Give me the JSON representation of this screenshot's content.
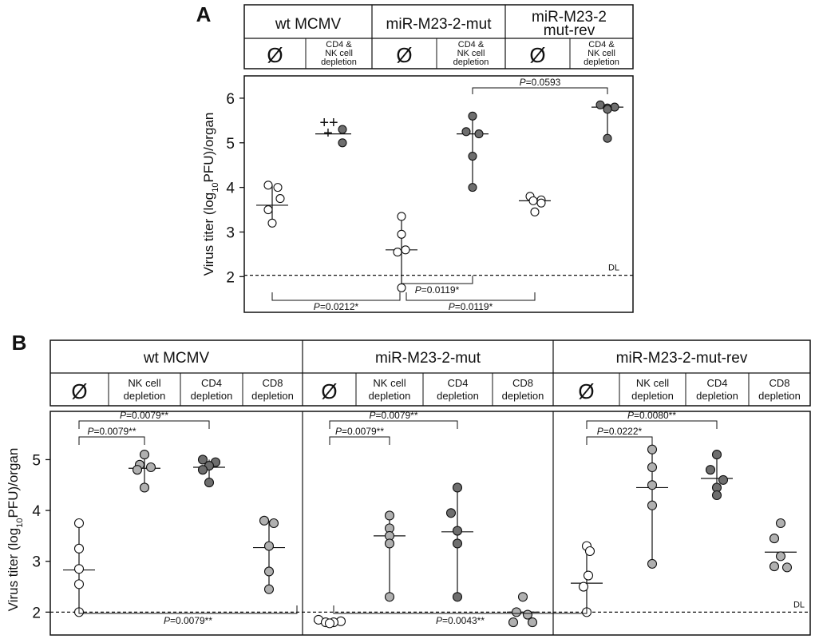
{
  "panel_a": {
    "label": "A",
    "groups": [
      {
        "name": "wt MCMV",
        "name_lines": [
          "wt MCMV"
        ],
        "conditions": [
          {
            "label": "Ø",
            "lines": [
              "Ø"
            ]
          },
          {
            "label": "CD4 & NK cell depletion",
            "lines": [
              "CD4 &",
              "NK cell",
              "depletion"
            ]
          }
        ]
      },
      {
        "name": "miR-M23-2-mut",
        "name_lines": [
          "miR-M23-2-mut"
        ],
        "conditions": [
          {
            "label": "Ø",
            "lines": [
              "Ø"
            ]
          },
          {
            "label": "CD4 & NK cell depletion",
            "lines": [
              "CD4 &",
              "NK cell",
              "depletion"
            ]
          }
        ]
      },
      {
        "name": "miR-M23-2 mut-rev",
        "name_lines": [
          "miR-M23-2",
          "mut-rev"
        ],
        "conditions": [
          {
            "label": "Ø",
            "lines": [
              "Ø"
            ]
          },
          {
            "label": "CD4 & NK cell depletion",
            "lines": [
              "CD4 &",
              "NK cell",
              "depletion"
            ]
          }
        ]
      }
    ],
    "ylabel": {
      "pre": "Virus titer (log",
      "sub": "10",
      "post": "PFU)/organ"
    },
    "yticks": [
      "2",
      "3",
      "4",
      "5",
      "6"
    ],
    "detection_limit": {
      "label": "DL",
      "value": 2.03
    },
    "deaths_marker": "++\n+"
  },
  "panel_b": {
    "label": "B",
    "groups": [
      {
        "name": "wt MCMV",
        "conditions": [
          {
            "label": "Ø",
            "lines": [
              "Ø"
            ]
          },
          {
            "label": "NK cell depletion",
            "lines": [
              "NK cell",
              "depletion"
            ]
          },
          {
            "label": "CD4 depletion",
            "lines": [
              "CD4",
              "depletion"
            ]
          },
          {
            "label": "CD8 depletion",
            "lines": [
              "CD8",
              "depletion"
            ]
          }
        ]
      },
      {
        "name": "miR-M23-2-mut",
        "conditions": [
          {
            "label": "Ø",
            "lines": [
              "Ø"
            ]
          },
          {
            "label": "NK cell depletion",
            "lines": [
              "NK cell",
              "depletion"
            ]
          },
          {
            "label": "CD4 depletion",
            "lines": [
              "CD4",
              "depletion"
            ]
          },
          {
            "label": "CD8 depletion",
            "lines": [
              "CD8",
              "depletion"
            ]
          }
        ]
      },
      {
        "name": "miR-M23-2-mut-rev",
        "conditions": [
          {
            "label": "Ø",
            "lines": [
              "Ø"
            ]
          },
          {
            "label": "NK cell depletion",
            "lines": [
              "NK cell",
              "depletion"
            ]
          },
          {
            "label": "CD4 depletion",
            "lines": [
              "CD4",
              "depletion"
            ]
          },
          {
            "label": "CD8 depletion",
            "lines": [
              "CD8",
              "depletion"
            ]
          }
        ]
      }
    ],
    "ylabel": {
      "pre": "Virus titer (log",
      "sub": "10",
      "post": "PFU)/organ"
    },
    "yticks": [
      "2",
      "3",
      "4",
      "5"
    ],
    "detection_limit": {
      "label": "DL",
      "value": 2.0
    }
  },
  "chart_data": [
    {
      "panel": "A",
      "type": "scatter",
      "ylim": [
        1.2,
        6.5
      ],
      "yticks": [
        2,
        3,
        4,
        5,
        6
      ],
      "series": [
        {
          "group": "wt MCMV",
          "condition": "Ø",
          "fill": "#ffffff",
          "values": [
            4.05,
            4.0,
            3.75,
            3.5,
            3.2
          ],
          "median": 3.6,
          "range": [
            3.2,
            4.05
          ]
        },
        {
          "group": "wt MCMV",
          "condition": "CD4 & NK cell depletion",
          "fill": "#6e6e6e",
          "values": [
            5.3,
            5.0
          ],
          "median": 5.2,
          "range": null
        },
        {
          "group": "miR-M23-2-mut",
          "condition": "Ø",
          "fill": "#ffffff",
          "values": [
            3.35,
            2.95,
            2.6,
            2.55,
            1.75
          ],
          "median": 2.6,
          "range": [
            1.75,
            3.35
          ]
        },
        {
          "group": "miR-M23-2-mut",
          "condition": "CD4 & NK cell depletion",
          "fill": "#6e6e6e",
          "values": [
            5.6,
            5.2,
            5.25,
            4.7,
            4.0
          ],
          "median": 5.2,
          "range": [
            4.0,
            5.6
          ]
        },
        {
          "group": "miR-M23-2 mut-rev",
          "condition": "Ø",
          "fill": "#ffffff",
          "values": [
            3.8,
            3.72,
            3.7,
            3.65,
            3.45
          ],
          "median": 3.7,
          "range": null
        },
        {
          "group": "miR-M23-2 mut-rev",
          "condition": "CD4 & NK cell depletion",
          "fill": "#6e6e6e",
          "values": [
            5.85,
            5.8,
            5.78,
            5.75,
            5.1
          ],
          "median": 5.8,
          "range": [
            5.1,
            5.85
          ]
        }
      ],
      "annotations": [
        {
          "text": "P=0.0593",
          "from": 3,
          "to": 5,
          "position": "top"
        },
        {
          "text": "P=0.0119*",
          "from": 2,
          "to": 3,
          "position": "bottom"
        },
        {
          "text": "P=0.0212*",
          "from": 0,
          "to": 2,
          "position": "bottom"
        },
        {
          "text": "P=0.0119*",
          "from": 2,
          "to": 4,
          "position": "bottom"
        }
      ]
    },
    {
      "panel": "B",
      "type": "scatter",
      "ylim": [
        1.55,
        5.95
      ],
      "yticks": [
        2,
        3,
        4,
        5
      ],
      "series": [
        {
          "group": "wt MCMV",
          "condition": "Ø",
          "fill": "#ffffff",
          "values": [
            3.75,
            3.25,
            2.85,
            2.55,
            2.0
          ],
          "median": 2.83,
          "range": [
            2.0,
            3.75
          ]
        },
        {
          "group": "wt MCMV",
          "condition": "NK cell depletion",
          "fill": "#b0b0b0",
          "values": [
            5.1,
            4.9,
            4.85,
            4.8,
            4.45
          ],
          "median": 4.83,
          "range": [
            4.45,
            5.1
          ]
        },
        {
          "group": "wt MCMV",
          "condition": "CD4 depletion",
          "fill": "#6e6e6e",
          "values": [
            5.0,
            4.95,
            4.88,
            4.8,
            4.55
          ],
          "median": 4.85,
          "range": [
            4.55,
            5.0
          ]
        },
        {
          "group": "wt MCMV",
          "condition": "CD8 depletion",
          "fill": "#b0b0b0",
          "values": [
            3.8,
            3.75,
            3.3,
            2.8,
            2.45
          ],
          "median": 3.27,
          "range": [
            2.45,
            3.8
          ]
        },
        {
          "group": "miR-M23-2-mut",
          "condition": "Ø",
          "fill": "#ffffff",
          "values": [
            1.85,
            1.82,
            1.8,
            1.8,
            1.78
          ],
          "median": 1.82,
          "range": null
        },
        {
          "group": "miR-M23-2-mut",
          "condition": "NK cell depletion",
          "fill": "#b0b0b0",
          "values": [
            3.9,
            3.65,
            3.5,
            3.35,
            2.3
          ],
          "median": 3.5,
          "range": [
            2.3,
            3.9
          ]
        },
        {
          "group": "miR-M23-2-mut",
          "condition": "CD4 depletion",
          "fill": "#6e6e6e",
          "values": [
            4.45,
            3.95,
            3.6,
            3.35,
            2.3
          ],
          "median": 3.58,
          "range": [
            2.3,
            4.45
          ]
        },
        {
          "group": "miR-M23-2-mut",
          "condition": "CD8 depletion",
          "fill": "#b0b0b0",
          "values": [
            2.3,
            2.0,
            1.95,
            1.8,
            1.8
          ],
          "median": 2.0,
          "range": null
        },
        {
          "group": "miR-M23-2-mut-rev",
          "condition": "Ø",
          "fill": "#ffffff",
          "values": [
            3.3,
            3.2,
            2.72,
            2.5,
            2.0
          ],
          "median": 2.57,
          "range": [
            2.0,
            3.3
          ]
        },
        {
          "group": "miR-M23-2-mut-rev",
          "condition": "NK cell depletion",
          "fill": "#b0b0b0",
          "values": [
            5.2,
            4.85,
            4.5,
            4.1,
            2.95
          ],
          "median": 4.45,
          "range": [
            2.95,
            5.2
          ]
        },
        {
          "group": "miR-M23-2-mut-rev",
          "condition": "CD4 depletion",
          "fill": "#6e6e6e",
          "values": [
            5.1,
            4.8,
            4.6,
            4.45,
            4.3
          ],
          "median": 4.63,
          "range": [
            4.3,
            5.1
          ]
        },
        {
          "group": "miR-M23-2-mut-rev",
          "condition": "CD8 depletion",
          "fill": "#b0b0b0",
          "values": [
            3.75,
            3.45,
            3.1,
            2.9,
            2.88
          ],
          "median": 3.18,
          "range": null
        }
      ],
      "annotations": [
        {
          "text": "P=0.0079**",
          "from": 0,
          "to": 2,
          "position": "top",
          "tier": 2
        },
        {
          "text": "P=0.0079**",
          "from": 0,
          "to": 1,
          "position": "top",
          "tier": 1
        },
        {
          "text": "P=0.0079**",
          "from": 4,
          "to": 6,
          "position": "top",
          "tier": 2
        },
        {
          "text": "P=0.0079**",
          "from": 4,
          "to": 5,
          "position": "top",
          "tier": 1
        },
        {
          "text": "P=0.0080**",
          "from": 8,
          "to": 10,
          "position": "top",
          "tier": 2
        },
        {
          "text": "P=0.0222*",
          "from": 8,
          "to": 9,
          "position": "top",
          "tier": 1
        },
        {
          "text": "P=0.0079**",
          "from": 0,
          "to": 4,
          "position": "bottom"
        },
        {
          "text": "P=0.0043**",
          "from": 4,
          "to": 8,
          "position": "bottom"
        }
      ]
    }
  ]
}
